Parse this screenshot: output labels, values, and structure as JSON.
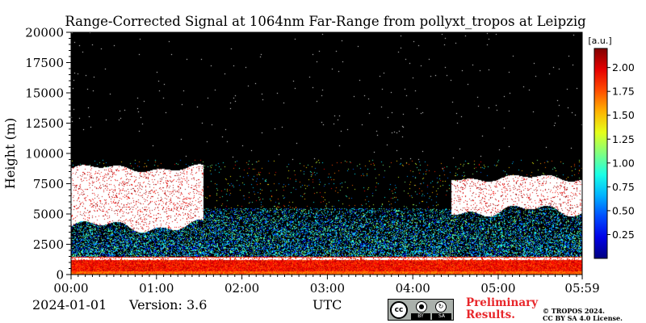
{
  "chart_data": {
    "type": "heatmap",
    "title": "Range-Corrected Signal at 1064nm Far-Range from pollyxt_tropos at Leipzig",
    "ylabel": "Height (m)",
    "xlabel": "UTC",
    "x_ticks": [
      "00:00",
      "01:00",
      "02:00",
      "03:00",
      "04:00",
      "05:00",
      "05:59"
    ],
    "y_ticks": [
      "0",
      "2500",
      "5000",
      "7500",
      "10000",
      "12500",
      "15000",
      "17500",
      "20000"
    ],
    "ylim": [
      0,
      20000
    ],
    "xlim_hours": [
      0,
      5.983
    ],
    "colorbar": {
      "unit": "[a.u.]",
      "ticks": [
        "0.25",
        "0.50",
        "0.75",
        "1.00",
        "1.25",
        "1.50",
        "1.75",
        "2.00"
      ],
      "range": [
        0,
        2.2
      ],
      "colormap": "jet"
    },
    "background_color": "#000000",
    "cloud_color": "#ffffff",
    "cloud_layers": [
      {
        "start_h": 0.0,
        "end_h": 1.55,
        "base_m": 4000,
        "top_m": 8800
      },
      {
        "start_h": 4.45,
        "end_h": 5.98,
        "base_m": 5300,
        "top_m": 8000
      }
    ],
    "boundary_layer_top_m": 1500
  },
  "footer": {
    "date": "2024-01-01",
    "version": "Version: 3.6",
    "utc": "UTC",
    "cc_by": "BY",
    "cc_sa": "SA",
    "preliminary_line1": "Preliminary",
    "preliminary_line2": "Results.",
    "license_line1": "© TROPOS 2024.",
    "license_line2": "CC BY SA 4.0 License."
  }
}
